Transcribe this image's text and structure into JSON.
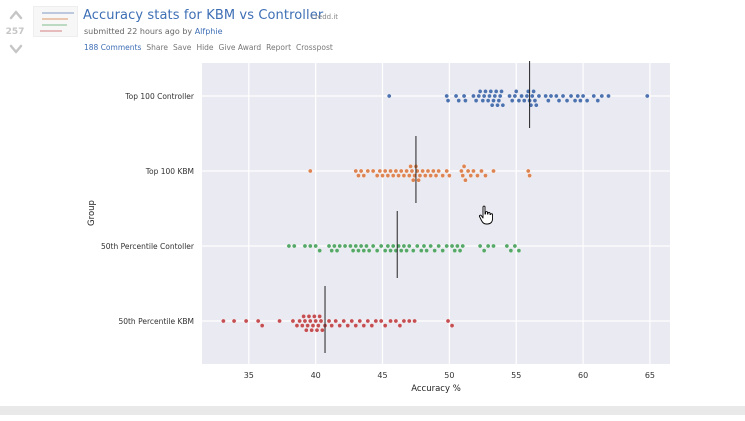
{
  "post": {
    "score": "257",
    "title": "Accuracy stats for KBM vs Controller",
    "domain": "i.redd.it",
    "submitted_prefix": "submitted 22 hours ago by",
    "author": "Alfphie",
    "actions": {
      "comments": "188 Comments",
      "share": "Share",
      "save": "Save",
      "hide": "Hide",
      "give_award": "Give Award",
      "report": "Report",
      "crosspost": "Crosspost"
    }
  },
  "colors": {
    "link": "#3e6fb5",
    "plot_bg": "#eaeaf2",
    "series": [
      "#4c72b0",
      "#dd8452",
      "#55a868",
      "#c44e52"
    ]
  },
  "chart_data": {
    "type": "scatter",
    "subtype": "swarm",
    "xlabel": "Accuracy %",
    "ylabel": "Group",
    "xlim": [
      31.5,
      66.5
    ],
    "xticks": [
      35,
      40,
      45,
      50,
      55,
      60,
      65
    ],
    "grid": true,
    "series": [
      {
        "name": "Top 100 Controller",
        "mean": 56.0,
        "values": [
          45.5,
          49.8,
          49.9,
          50.5,
          50.7,
          51.1,
          51.2,
          51.8,
          52.0,
          52.2,
          52.3,
          52.5,
          52.6,
          52.7,
          52.9,
          53.0,
          53.1,
          53.2,
          53.3,
          53.4,
          53.5,
          53.6,
          53.7,
          53.8,
          53.9,
          54.0,
          54.5,
          54.7,
          54.9,
          55.0,
          55.2,
          55.4,
          55.6,
          55.8,
          55.9,
          56.0,
          56.1,
          56.2,
          56.3,
          56.4,
          56.5,
          56.7,
          57.2,
          57.4,
          57.6,
          58.0,
          58.2,
          58.5,
          58.8,
          59.1,
          59.4,
          59.6,
          59.8,
          60.0,
          60.3,
          60.8,
          61.1,
          61.4,
          61.9,
          64.8
        ]
      },
      {
        "name": "Top 100 KBM",
        "mean": 47.5,
        "values": [
          39.6,
          43.0,
          43.2,
          43.4,
          43.6,
          43.9,
          44.3,
          44.6,
          44.8,
          45.0,
          45.2,
          45.4,
          45.6,
          45.8,
          46.0,
          46.2,
          46.4,
          46.6,
          46.8,
          47.0,
          47.1,
          47.2,
          47.3,
          47.4,
          47.5,
          47.6,
          47.7,
          47.8,
          48.0,
          48.2,
          48.4,
          48.6,
          48.8,
          49.0,
          49.2,
          49.5,
          49.8,
          50.0,
          50.9,
          51.0,
          51.1,
          51.2,
          51.4,
          51.6,
          51.8,
          52.1,
          52.4,
          52.7,
          53.3,
          55.9,
          56.0
        ]
      },
      {
        "name": "50th Percentile Contoller",
        "mean": 46.1,
        "values": [
          38.0,
          38.4,
          39.2,
          39.6,
          40.0,
          40.3,
          41.0,
          41.2,
          41.4,
          41.6,
          41.8,
          42.2,
          42.6,
          42.8,
          43.0,
          43.2,
          43.4,
          43.6,
          43.8,
          44.0,
          44.3,
          44.6,
          44.9,
          45.2,
          45.4,
          45.6,
          45.8,
          46.0,
          46.2,
          46.4,
          46.6,
          46.8,
          47.0,
          47.3,
          47.6,
          47.9,
          48.1,
          48.3,
          48.6,
          48.9,
          49.2,
          49.5,
          49.8,
          50.2,
          50.4,
          50.6,
          50.8,
          51.0,
          52.3,
          52.6,
          52.9,
          53.3,
          54.3,
          54.6,
          54.9,
          55.2
        ]
      },
      {
        "name": "50th Percentile KBM",
        "mean": 40.7,
        "values": [
          33.1,
          33.9,
          34.8,
          35.7,
          36.0,
          37.3,
          38.3,
          38.6,
          38.8,
          39.0,
          39.1,
          39.2,
          39.3,
          39.4,
          39.5,
          39.6,
          39.7,
          39.8,
          39.9,
          40.0,
          40.1,
          40.2,
          40.3,
          40.4,
          40.5,
          40.7,
          41.0,
          41.2,
          41.5,
          41.8,
          42.1,
          42.4,
          42.7,
          43.0,
          43.3,
          43.6,
          43.9,
          44.2,
          44.5,
          44.9,
          45.2,
          45.6,
          46.0,
          46.3,
          46.6,
          47.0,
          47.4,
          49.9,
          50.2
        ]
      }
    ]
  }
}
